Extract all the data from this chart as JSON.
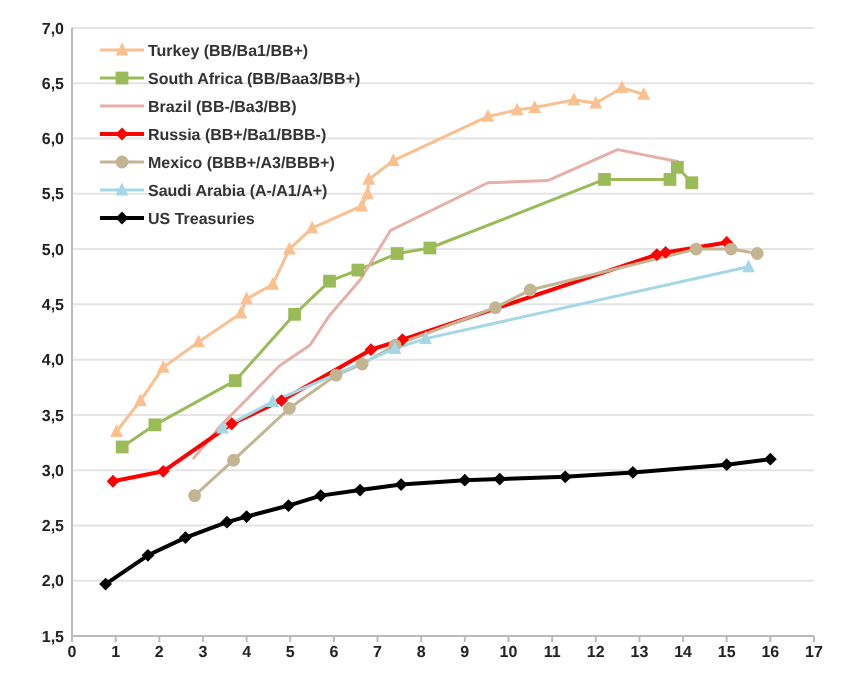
{
  "chart_data": {
    "type": "line",
    "legend": "top left",
    "grid": "y",
    "xlim": [
      0,
      17
    ],
    "xticks": [
      0,
      1,
      2,
      3,
      4,
      5,
      6,
      7,
      8,
      9,
      10,
      11,
      12,
      13,
      14,
      15,
      16,
      17
    ],
    "ylim": [
      1.5,
      7
    ],
    "yticks": [
      {
        "value": 1.5,
        "label": "1,5"
      },
      {
        "value": 2,
        "label": "2,0"
      },
      {
        "value": 2.5,
        "label": "2,5"
      },
      {
        "value": 3,
        "label": "3,0"
      },
      {
        "value": 3.5,
        "label": "3,5"
      },
      {
        "value": 4,
        "label": "4,0"
      },
      {
        "value": 4.5,
        "label": "4,5"
      },
      {
        "value": 5,
        "label": "5,0"
      },
      {
        "value": 5.5,
        "label": "5,5"
      },
      {
        "value": 6,
        "label": "6,0"
      },
      {
        "value": 6.5,
        "label": "6,5"
      },
      {
        "value": 7,
        "label": "7,0"
      }
    ],
    "series": [
      {
        "name": "Turkey (BB/Ba1/BB+)",
        "color": "#fac090",
        "marker": "triangle",
        "x": [
          1.02,
          1.57,
          2.09,
          2.9,
          3.87,
          4.0,
          4.6,
          4.98,
          5.5,
          6.64,
          6.77,
          6.8,
          7.36,
          9.53,
          10.2,
          10.6,
          11.5,
          12.0,
          12.6,
          13.1
        ],
        "values": [
          3.35,
          3.63,
          3.93,
          4.16,
          4.42,
          4.55,
          4.68,
          5.0,
          5.19,
          5.39,
          5.5,
          5.63,
          5.8,
          6.2,
          6.26,
          6.28,
          6.35,
          6.32,
          6.46,
          6.4
        ]
      },
      {
        "name": "South Africa (BB/Baa3/BB+)",
        "color": "#9bbb59",
        "marker": "square",
        "x": [
          1.15,
          1.9,
          3.74,
          5.1,
          5.9,
          6.55,
          7.45,
          8.2,
          12.2,
          13.7,
          13.87,
          14.2
        ],
        "values": [
          3.21,
          3.41,
          3.81,
          4.41,
          4.71,
          4.81,
          4.96,
          5.01,
          5.63,
          5.63,
          5.74,
          5.6
        ]
      },
      {
        "name": "Brazil (BB-/Ba3/BB)",
        "color": "#e6b0aa",
        "marker": "none",
        "x": [
          2.77,
          3.4,
          4.77,
          5.45,
          5.9,
          6.6,
          7.3,
          9.53,
          10.9,
          12.5,
          13.9
        ],
        "values": [
          3.1,
          3.4,
          3.95,
          4.13,
          4.4,
          4.72,
          5.17,
          5.6,
          5.62,
          5.9,
          5.79
        ]
      },
      {
        "name": "Russia (BB+/Ba1/BBB-)",
        "color": "#ff0000",
        "marker": "diamond",
        "x": [
          0.94,
          2.09,
          3.66,
          4.8,
          6.85,
          7.57,
          13.4,
          13.6,
          15.0
        ],
        "values": [
          2.9,
          2.99,
          3.42,
          3.63,
          4.09,
          4.18,
          4.95,
          4.97,
          5.06
        ]
      },
      {
        "name": "Mexico (BBB+/A3/BBB+)",
        "color": "#c4b592",
        "marker": "circle",
        "x": [
          2.81,
          3.7,
          4.98,
          6.05,
          6.65,
          7.4,
          9.7,
          10.5,
          14.3,
          15.1,
          15.7
        ],
        "values": [
          2.77,
          3.09,
          3.56,
          3.86,
          3.96,
          4.13,
          4.47,
          4.63,
          5.0,
          5.0,
          4.96
        ]
      },
      {
        "name": "Saudi Arabia (A-/A1/A+)",
        "color": "#a5d8e6",
        "marker": "triangle",
        "x": [
          3.45,
          4.6,
          7.4,
          8.1,
          15.5
        ],
        "values": [
          3.38,
          3.62,
          4.1,
          4.19,
          4.84
        ]
      },
      {
        "name": "US Treasuries",
        "color": "#000000",
        "marker": "diamond",
        "x": [
          0.77,
          1.74,
          2.6,
          3.55,
          4.0,
          4.96,
          5.7,
          6.6,
          7.54,
          9.0,
          9.8,
          11.3,
          12.85,
          15.0,
          16.0
        ],
        "values": [
          1.97,
          2.23,
          2.39,
          2.53,
          2.58,
          2.68,
          2.77,
          2.82,
          2.87,
          2.91,
          2.92,
          2.94,
          2.98,
          3.05,
          3.1
        ]
      }
    ]
  }
}
